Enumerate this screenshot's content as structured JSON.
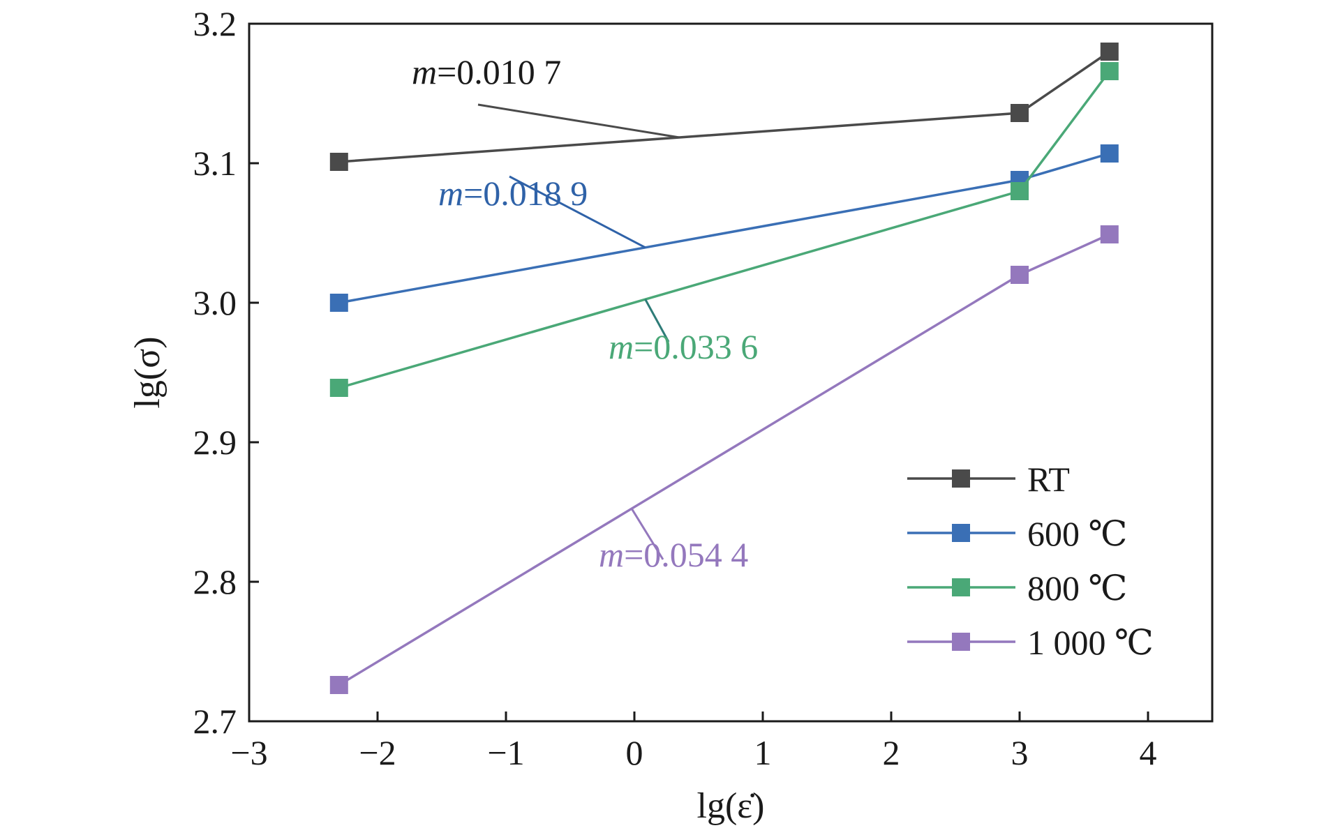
{
  "chart_data": {
    "type": "line",
    "title": "",
    "xlabel": "lg(ε̇)",
    "ylabel": "lg(σ)",
    "xlim": [
      -3,
      4.5
    ],
    "ylim": [
      2.7,
      3.2
    ],
    "xticks": [
      -3,
      -2,
      -1,
      0,
      1,
      2,
      3,
      4
    ],
    "xtick_labels": [
      "−3",
      "−2",
      "−1",
      "0",
      "1",
      "2",
      "3",
      "4"
    ],
    "yticks": [
      2.7,
      2.8,
      2.9,
      3.0,
      3.1,
      3.2
    ],
    "ytick_labels": [
      "2.7",
      "2.8",
      "2.9",
      "3.0",
      "3.1",
      "3.2"
    ],
    "grid": false,
    "legend_position": "bottom-right",
    "series": [
      {
        "name": "RT",
        "color": "#4a4a4a",
        "x": [
          -2.3,
          3.0,
          3.7
        ],
        "y": [
          3.101,
          3.136,
          3.18
        ]
      },
      {
        "name": "600 ℃",
        "color": "#3a6fb5",
        "x": [
          -2.3,
          3.0,
          3.7
        ],
        "y": [
          3.0,
          3.088,
          3.107
        ]
      },
      {
        "name": "800 ℃",
        "color": "#4aa877",
        "x": [
          -2.3,
          3.0,
          3.7
        ],
        "y": [
          2.939,
          3.08,
          3.166
        ]
      },
      {
        "name": "1 000 ℃",
        "color": "#9478bd",
        "x": [
          -2.3,
          3.0,
          3.7
        ],
        "y": [
          2.726,
          3.02,
          3.049
        ]
      }
    ],
    "annotations": [
      {
        "var": "m",
        "text": "=0.010 7",
        "series": 0,
        "color": "#1a1a1a",
        "line_color": "#4a4a4a"
      },
      {
        "var": "m",
        "text": "=0.018 9",
        "series": 1,
        "color": "#2f62a8",
        "line_color": "#2f62a8"
      },
      {
        "var": "m",
        "text": "=0.033 6",
        "series": 2,
        "color": "#4aa877",
        "line_color": "#2e7c78"
      },
      {
        "var": "m",
        "text": "=0.054 4",
        "series": 3,
        "color": "#9478bd",
        "line_color": "#9478bd"
      }
    ]
  }
}
